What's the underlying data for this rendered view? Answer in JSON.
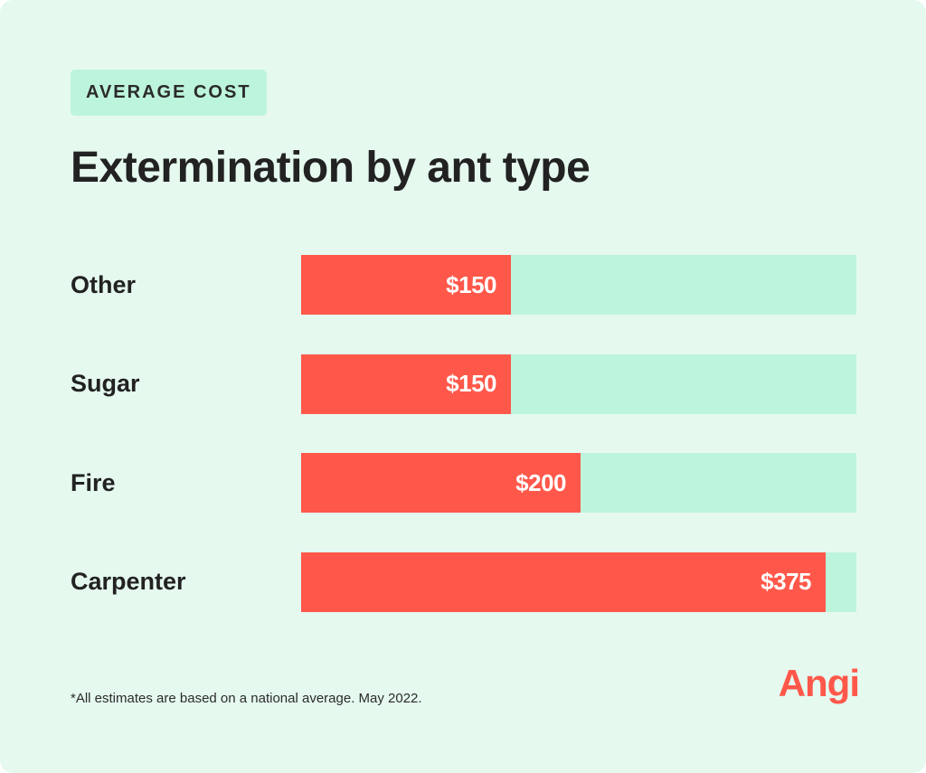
{
  "header": {
    "tag": "AVERAGE COST",
    "title": "Extermination by ant type"
  },
  "chart_data": {
    "type": "bar",
    "orientation": "horizontal",
    "categories": [
      "Other",
      "Sugar",
      "Fire",
      "Carpenter"
    ],
    "values": [
      150,
      150,
      200,
      375
    ],
    "value_labels": [
      "$150",
      "$150",
      "$200",
      "$375"
    ],
    "xlim": [
      0,
      397
    ],
    "title": "Extermination by ant type",
    "xlabel": "",
    "ylabel": "",
    "grid": false,
    "colors": {
      "bar": "#ff584a",
      "track": "#bdf5dc"
    }
  },
  "footer": {
    "note": "*All estimates are based on a national average. May 2022.",
    "logo_text": "Angi"
  },
  "colors": {
    "background": "#e5f9ef",
    "accent": "#ff584a",
    "tag_background": "#bdf5dc",
    "text": "#222222"
  }
}
